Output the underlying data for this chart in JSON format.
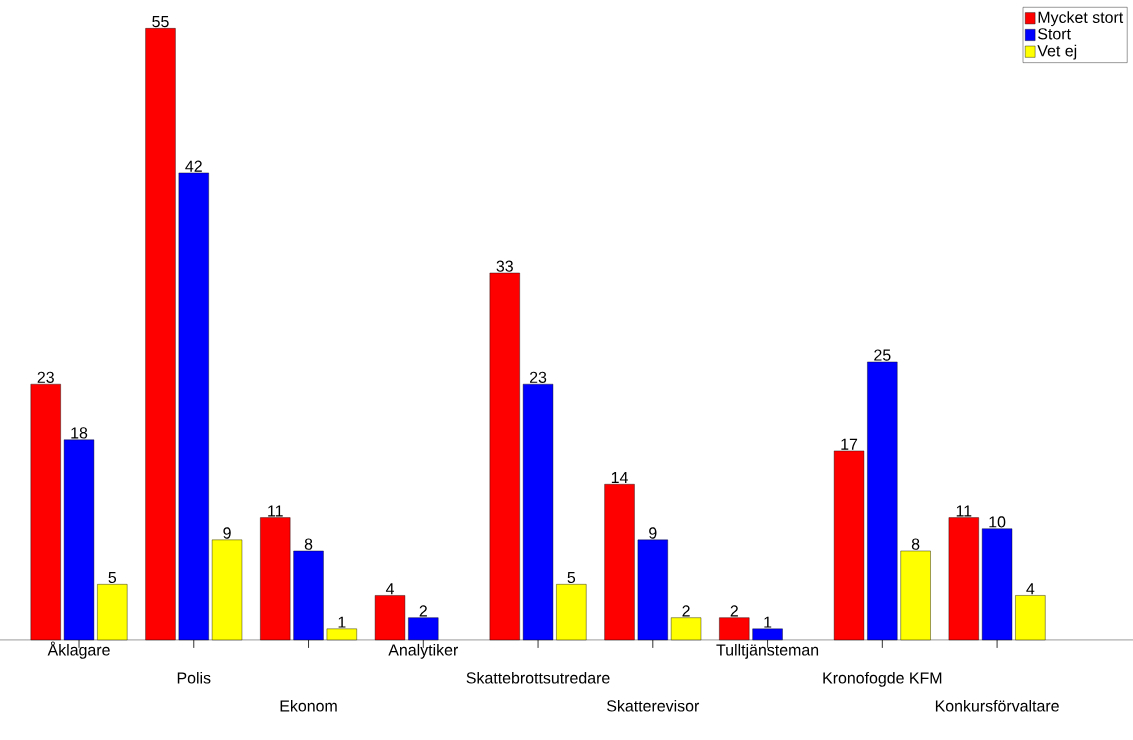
{
  "chart_data": {
    "type": "bar",
    "categories": [
      "Åklagare",
      "Polis",
      "Ekonom",
      "Analytiker",
      "Skattebrottsutredare",
      "Skatterevisor",
      "Tulltjänsteman",
      "Kronofogde KFM",
      "Konkursförvaltare"
    ],
    "series": [
      {
        "name": "Mycket stort",
        "color": "#ff0000",
        "values": [
          23,
          55,
          11,
          4,
          33,
          14,
          2,
          17,
          11
        ]
      },
      {
        "name": "Stort",
        "color": "#0000ff",
        "values": [
          18,
          42,
          8,
          2,
          23,
          9,
          1,
          25,
          10
        ]
      },
      {
        "name": "Vet ej",
        "color": "#ffff00",
        "values": [
          5,
          9,
          1,
          null,
          5,
          2,
          null,
          8,
          4
        ]
      }
    ],
    "data_labels": true,
    "legend": "top right"
  }
}
